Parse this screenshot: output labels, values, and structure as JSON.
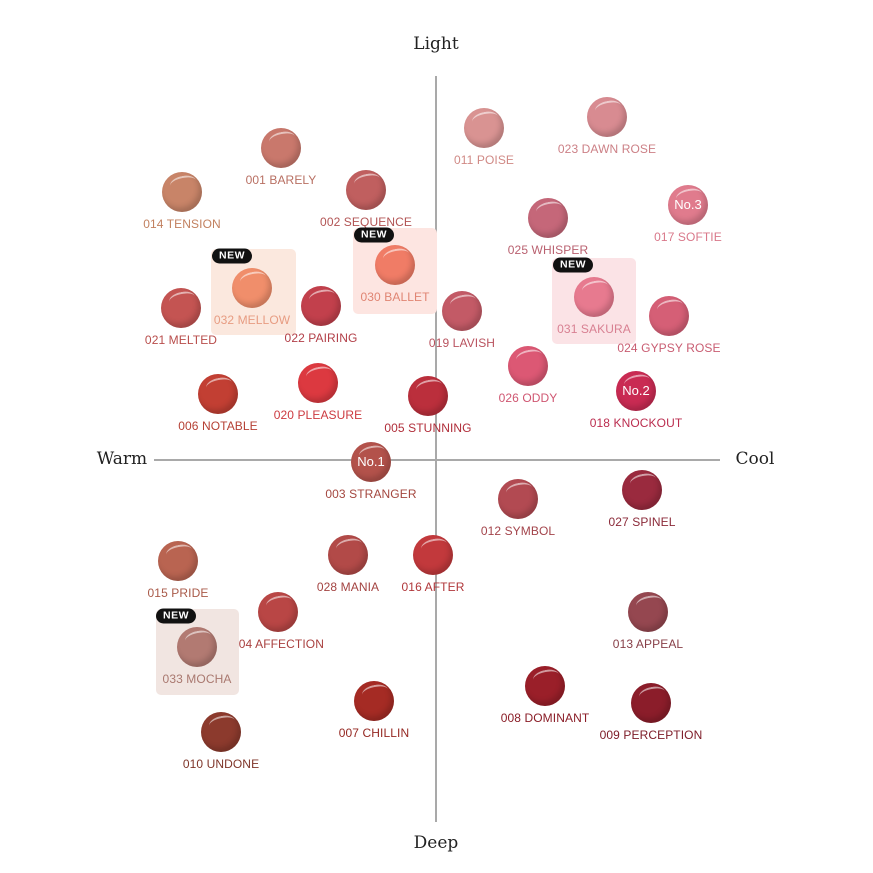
{
  "axes": {
    "top": "Light",
    "bottom": "Deep",
    "left": "Warm",
    "right": "Cool",
    "line_color": "#a9a9a9"
  },
  "badge_text": "NEW",
  "swatches": [
    {
      "id": "001",
      "label": "001 BARELY",
      "color": "#c9786c",
      "text_color": "#b86f62"
    },
    {
      "id": "002",
      "label": "002 SEQUENCE",
      "color": "#c05f5f",
      "text_color": "#b25454"
    },
    {
      "id": "011",
      "label": "011 POISE",
      "color": "#d99392",
      "text_color": "#d08985"
    },
    {
      "id": "023",
      "label": "023 DAWN ROSE",
      "color": "#d88b91",
      "text_color": "#cc8086"
    },
    {
      "id": "014",
      "label": "014 TENSION",
      "color": "#c88468",
      "text_color": "#c2805f"
    },
    {
      "id": "017",
      "label": "017 SOFTIE",
      "color": "#e07b8d",
      "text_color": "#d9788a",
      "rank": "No.3"
    },
    {
      "id": "025",
      "label": "025 WHISPER",
      "color": "#c56779",
      "text_color": "#b9606f"
    },
    {
      "id": "032",
      "label": "032 MELLOW",
      "color": "#f08e6b",
      "text_color": "#e79c82",
      "is_new": true
    },
    {
      "id": "030",
      "label": "030  BALLET",
      "color": "#f07c66",
      "text_color": "#e08573",
      "is_new": true
    },
    {
      "id": "031",
      "label": "031 SAKURA",
      "color": "#e77a8f",
      "text_color": "#d88092",
      "is_new": true
    },
    {
      "id": "021",
      "label": "021 MELTED",
      "color": "#c45452",
      "text_color": "#b84d4b"
    },
    {
      "id": "022",
      "label": "022 PAIRING",
      "color": "#c2404c",
      "text_color": "#b23f48"
    },
    {
      "id": "019",
      "label": "019 LAVISH",
      "color": "#c35a66",
      "text_color": "#b9535f"
    },
    {
      "id": "024",
      "label": "024 GYPSY ROSE",
      "color": "#d55f76",
      "text_color": "#c95d72"
    },
    {
      "id": "026",
      "label": "026 ODDY",
      "color": "#dc5874",
      "text_color": "#cf5671"
    },
    {
      "id": "006",
      "label": "006 NOTABLE",
      "color": "#c23f33",
      "text_color": "#b54034"
    },
    {
      "id": "020",
      "label": "020 PLEASURE",
      "color": "#dc3940",
      "text_color": "#cc3a40"
    },
    {
      "id": "005",
      "label": "005 STUNNING",
      "color": "#bb2f3c",
      "text_color": "#b02d39"
    },
    {
      "id": "018",
      "label": "018 KNOCKOUT",
      "color": "#c92b53",
      "text_color": "#bb2d4f",
      "rank": "No.2"
    },
    {
      "id": "003",
      "label": "003 STRANGER",
      "color": "#b3524b",
      "text_color": "#a4473f",
      "rank": "No.1"
    },
    {
      "id": "012",
      "label": "012 SYMBOL",
      "color": "#b24a52",
      "text_color": "#a3444b"
    },
    {
      "id": "027",
      "label": "027 SPINEL",
      "color": "#9a2a3e",
      "text_color": "#8b2a39"
    },
    {
      "id": "015",
      "label": "015 PRIDE",
      "color": "#b96451",
      "text_color": "#a95a49"
    },
    {
      "id": "028",
      "label": "028 MANIA",
      "color": "#b24a48",
      "text_color": "#a34341"
    },
    {
      "id": "016",
      "label": "016 AFTER",
      "color": "#c2393c",
      "text_color": "#b0373a"
    },
    {
      "id": "004",
      "label": "004 AFFECTION",
      "color": "#b94645",
      "text_color": "#a9403f"
    },
    {
      "id": "013",
      "label": "013 APPEAL",
      "color": "#954750",
      "text_color": "#884049"
    },
    {
      "id": "033",
      "label": "033 MOCHA",
      "color": "#b27a72",
      "text_color": "#a9786f",
      "is_new": true
    },
    {
      "id": "008",
      "label": "008 DOMINANT",
      "color": "#9a1f29",
      "text_color": "#8a1d27"
    },
    {
      "id": "009",
      "label": "009 PERCEPTION",
      "color": "#8b1d2a",
      "text_color": "#7d1b27"
    },
    {
      "id": "007",
      "label": "007 CHILLIN",
      "color": "#a52b24",
      "text_color": "#952822"
    },
    {
      "id": "010",
      "label": "010 UNDONE",
      "color": "#8c3a2d",
      "text_color": "#7f3529"
    }
  ]
}
